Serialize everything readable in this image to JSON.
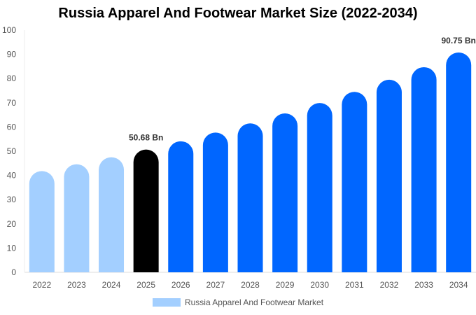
{
  "chart_data": {
    "type": "bar",
    "title": "Russia Apparel And Footwear Market Size (2022-2034)",
    "categories": [
      "2022",
      "2023",
      "2024",
      "2025",
      "2026",
      "2027",
      "2028",
      "2029",
      "2030",
      "2031",
      "2032",
      "2033",
      "2034"
    ],
    "series": [
      {
        "name": "Russia Apparel And Footwear Market",
        "values": [
          41.8,
          44.6,
          47.5,
          50.68,
          54.1,
          57.7,
          61.5,
          65.6,
          69.9,
          74.5,
          79.5,
          84.7,
          90.75
        ]
      }
    ],
    "data_labels": [
      {
        "category": "2025",
        "text": "50.68 Bn"
      },
      {
        "category": "2034",
        "text": "90.75 Bn"
      }
    ],
    "ylim": [
      0,
      100
    ],
    "yticks": [
      0,
      10,
      20,
      30,
      40,
      50,
      60,
      70,
      80,
      90,
      100
    ],
    "xlabel": "",
    "ylabel": "",
    "grid": false,
    "legend_position": "bottom",
    "colors": {
      "historical": "#a3cfff",
      "current": "#000000",
      "forecast": "#0066ff"
    },
    "color_groups": [
      "historical",
      "historical",
      "historical",
      "current",
      "forecast",
      "forecast",
      "forecast",
      "forecast",
      "forecast",
      "forecast",
      "forecast",
      "forecast",
      "forecast"
    ]
  }
}
